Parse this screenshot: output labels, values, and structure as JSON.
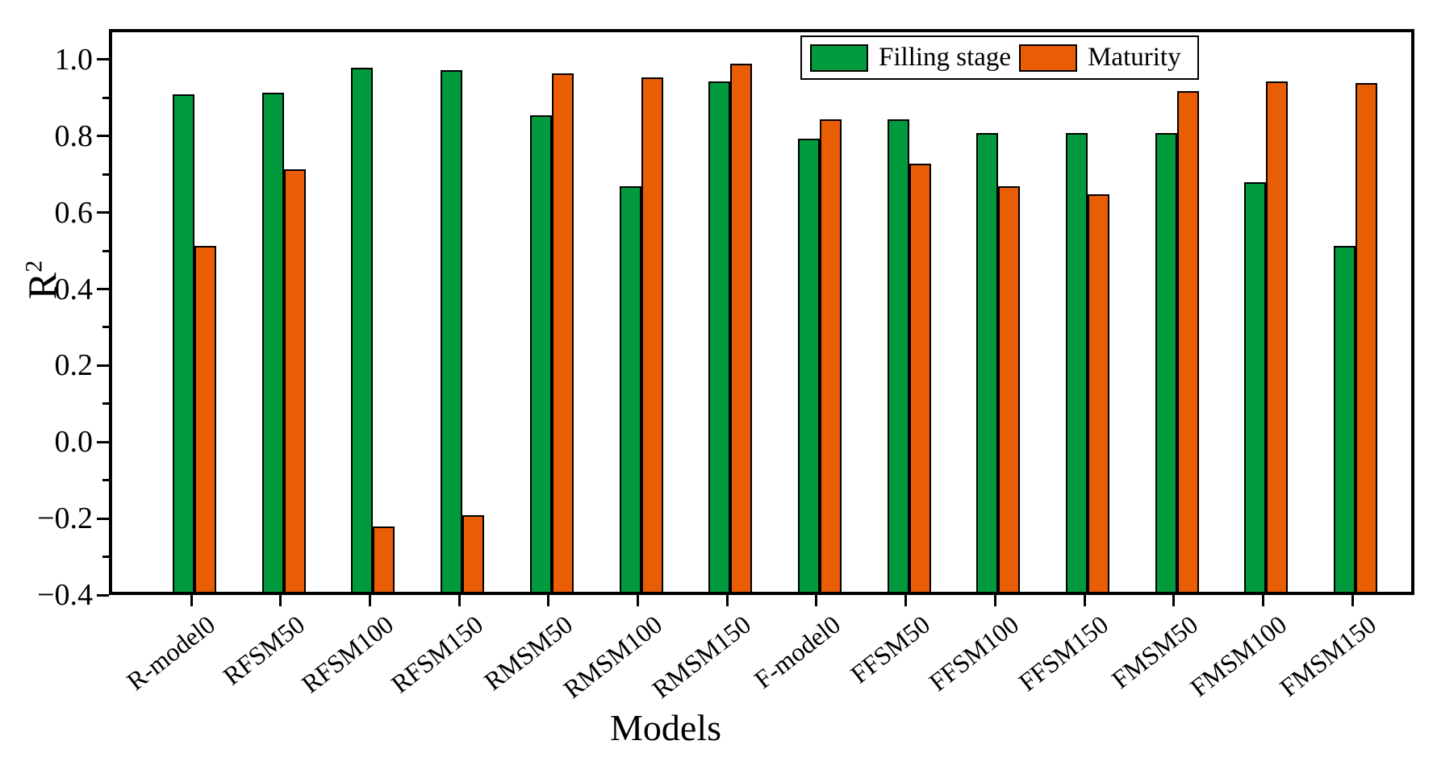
{
  "chart_data": {
    "type": "bar",
    "title": "",
    "xlabel": "Models",
    "ylabel_base": "R",
    "ylabel_sup": "2",
    "categories": [
      "R-model0",
      "RFSM50",
      "RFSM100",
      "RFSM150",
      "RMSM50",
      "RMSM100",
      "RMSM150",
      "F-model0",
      "FFSM50",
      "FFSM100",
      "FFSM150",
      "FMSM50",
      "FMSM100",
      "FMSM150"
    ],
    "series": [
      {
        "name": "Filling stage",
        "color": "#019A3C",
        "values": [
          0.9,
          0.905,
          0.97,
          0.965,
          0.845,
          0.66,
          0.935,
          0.785,
          0.835,
          0.8,
          0.8,
          0.8,
          0.67,
          0.505
        ]
      },
      {
        "name": "Maturity",
        "color": "#E95D04",
        "values": [
          0.505,
          0.705,
          -0.23,
          -0.2,
          0.955,
          0.945,
          0.98,
          0.835,
          0.72,
          0.66,
          0.64,
          0.91,
          0.935,
          0.93
        ]
      }
    ],
    "ylim": [
      -0.4,
      1.08
    ],
    "bar_baseline": -0.4,
    "yticks_major": [
      1.0,
      0.8,
      0.6,
      0.4,
      0.2,
      0.0,
      -0.2,
      -0.4
    ],
    "ytick_labels": [
      "1.0",
      "0.8",
      "0.6",
      "0.4",
      "0.2",
      "0.0",
      "−0.2",
      "−0.4"
    ],
    "yticks_minor": [
      0.9,
      0.7,
      0.5,
      0.3,
      0.1,
      -0.1,
      -0.3
    ],
    "grid": false,
    "legend_position": "top-right-inside",
    "bar_outline_color": "#000000",
    "axis_color": "#000000"
  }
}
